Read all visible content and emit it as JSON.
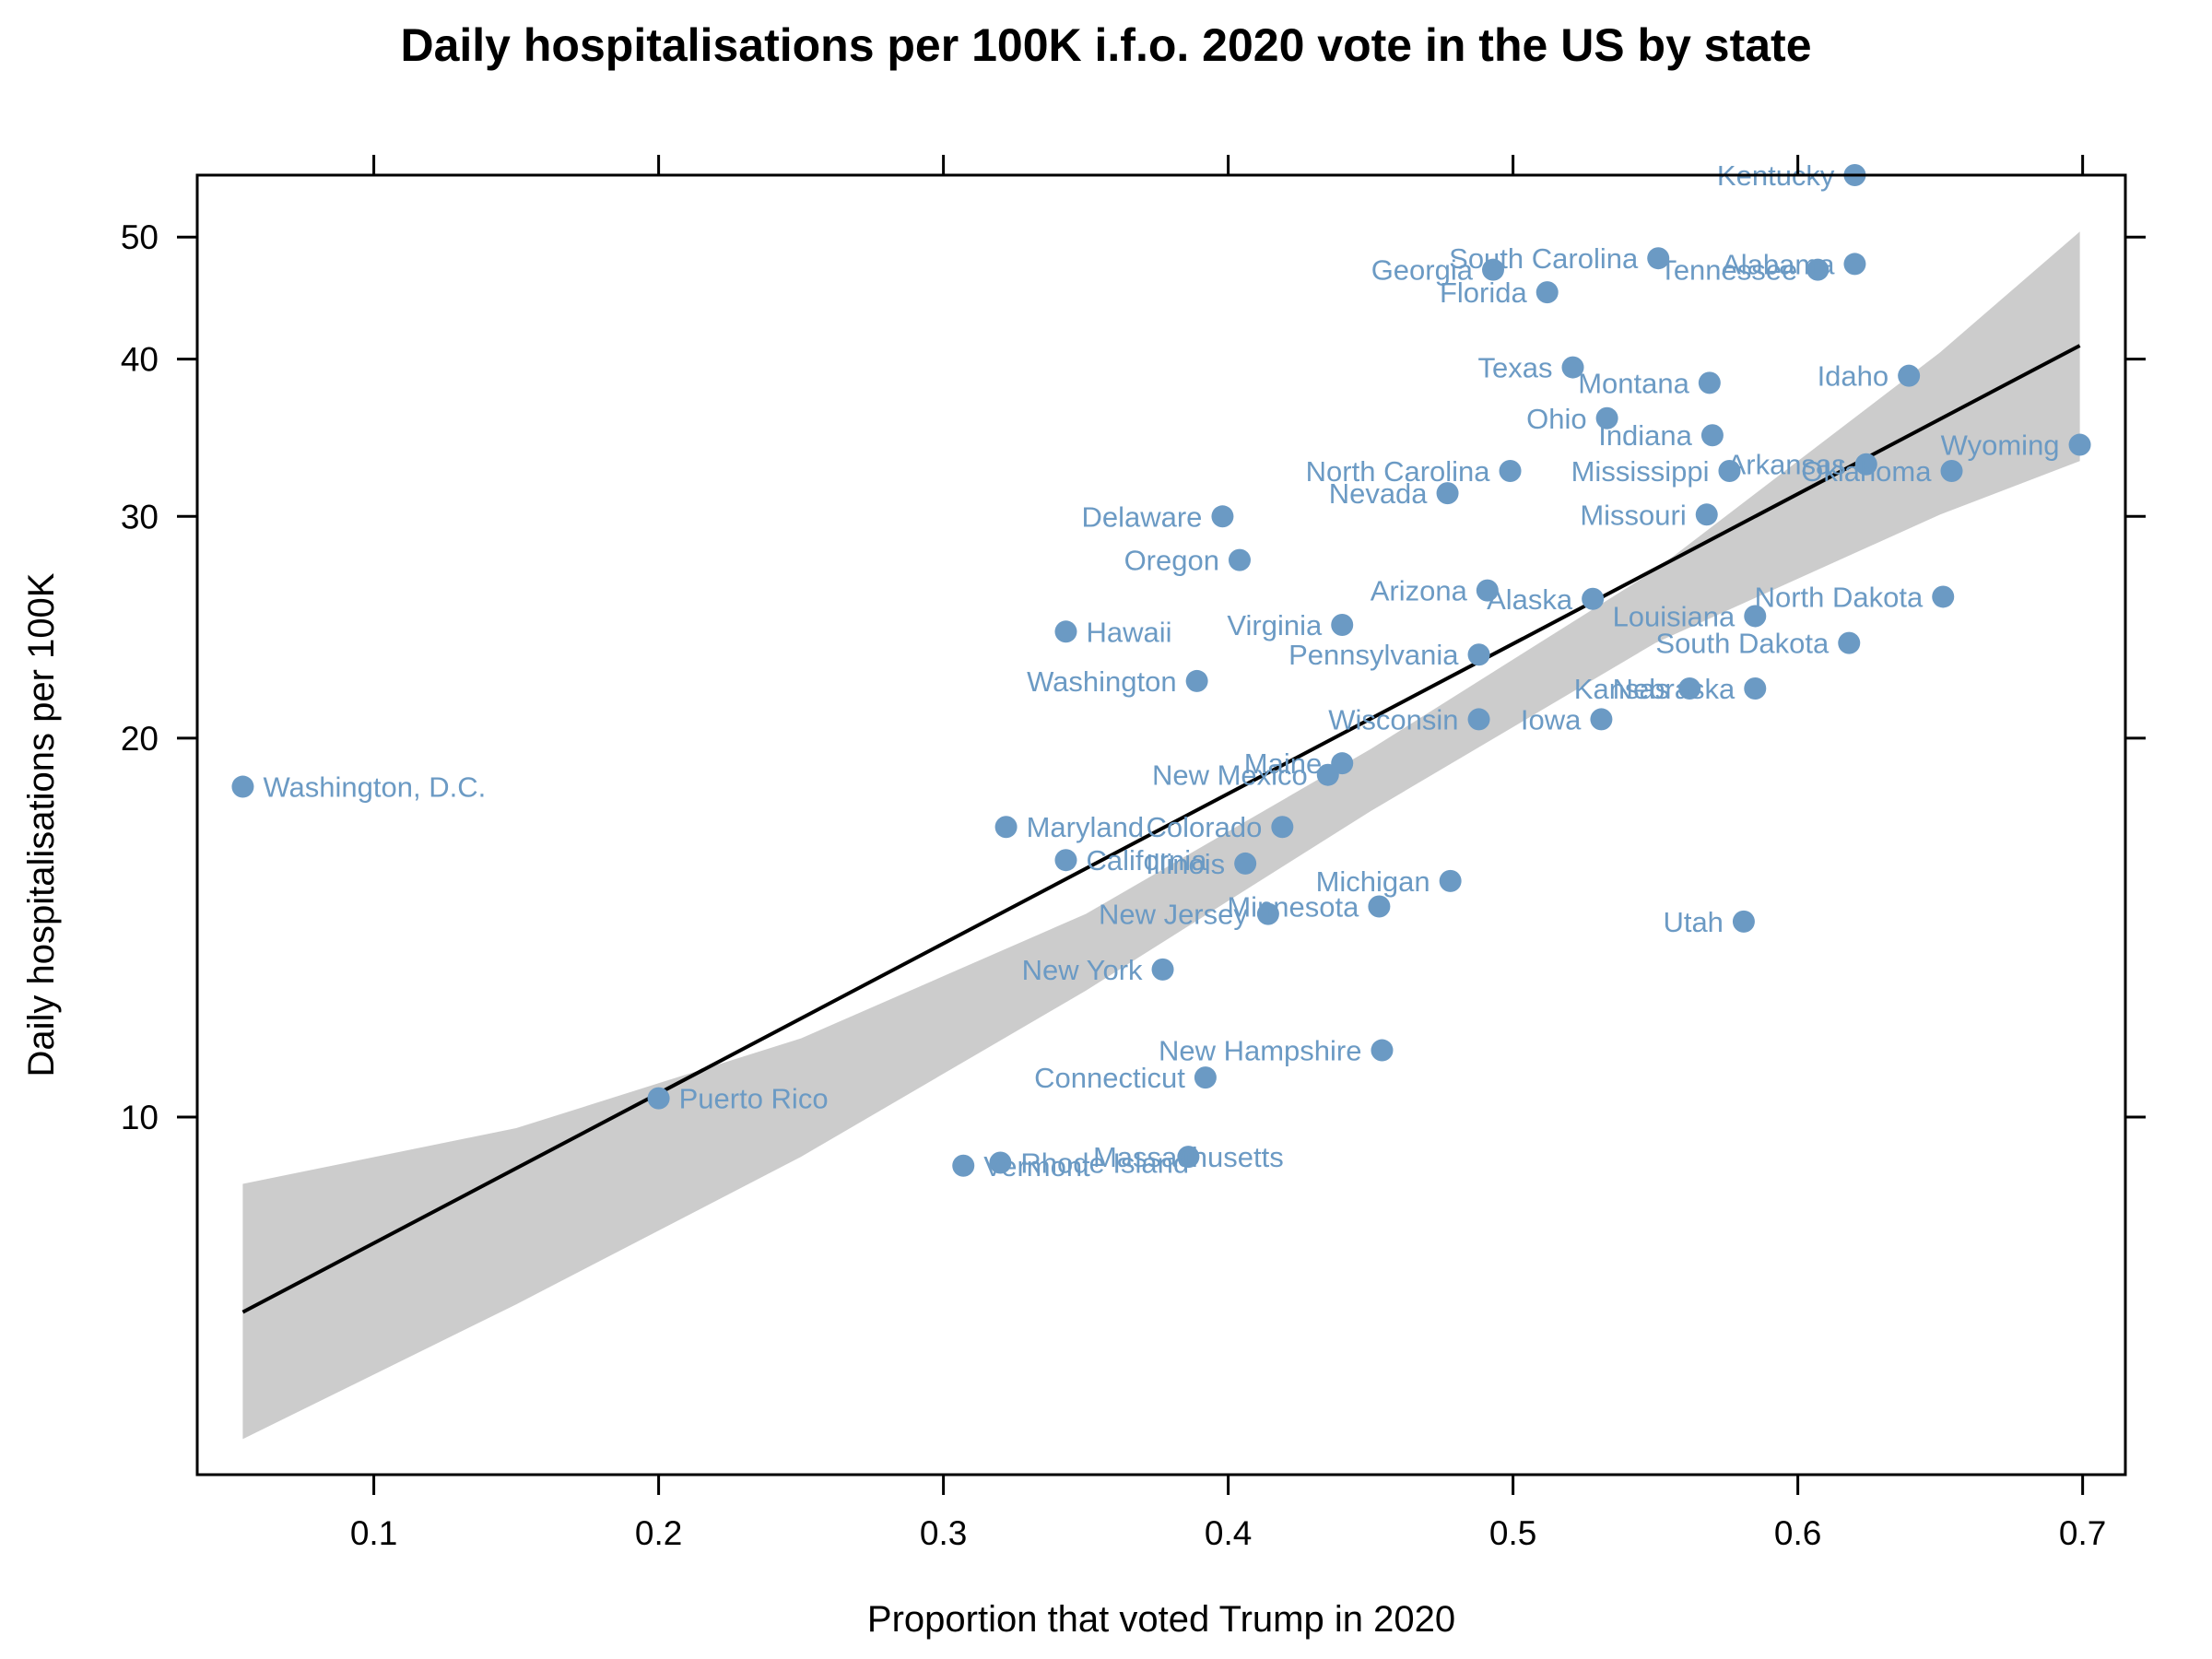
{
  "chart_data": {
    "type": "scatter",
    "title": "Daily hospitalisations per 100K i.f.o. 2020 vote in the US by state",
    "xlabel": "Proportion that voted Trump in 2020",
    "ylabel": "Daily hospitalisations per 100K",
    "xlim": [
      0.038,
      0.715
    ],
    "ylim": [
      5.2,
      56
    ],
    "y_scale": "log",
    "x_ticks": [
      0.1,
      0.2,
      0.3,
      0.4,
      0.5,
      0.6,
      0.7
    ],
    "x_tick_labels": [
      "0.1",
      "0.2",
      "0.3",
      "0.4",
      "0.5",
      "0.6",
      "0.7"
    ],
    "y_ticks": [
      10,
      20,
      30,
      40,
      50
    ],
    "y_tick_labels": [
      "10",
      "20",
      "30",
      "40",
      "50"
    ],
    "grid": false,
    "colors": {
      "points": "#6b9ac4",
      "labels": "#6b9ac4",
      "fit_line": "#000000",
      "confidence_band": "#cccccc"
    },
    "fit": {
      "x": [
        0.054,
        0.699
      ],
      "y": [
        7.0,
        41.0
      ],
      "band": {
        "x": [
          0.054,
          0.15,
          0.25,
          0.35,
          0.45,
          0.55,
          0.65,
          0.699
        ],
        "lower": [
          5.55,
          7.1,
          9.3,
          12.6,
          17.5,
          23.8,
          30.1,
          33.2
        ],
        "upper": [
          8.85,
          9.8,
          11.55,
          14.5,
          19.6,
          27.2,
          40.5,
          50.5
        ]
      }
    },
    "points": [
      {
        "label": "Washington, D.C.",
        "x": 0.054,
        "y": 18.3,
        "anchor": "right"
      },
      {
        "label": "Puerto Rico",
        "x": 0.2,
        "y": 10.35,
        "anchor": "right"
      },
      {
        "label": "Vermont",
        "x": 0.307,
        "y": 9.15,
        "anchor": "right"
      },
      {
        "label": "Rhode Island",
        "x": 0.32,
        "y": 9.2,
        "anchor": "right"
      },
      {
        "label": "Massachusetts",
        "x": 0.386,
        "y": 9.3,
        "anchor": "center"
      },
      {
        "label": "Maryland",
        "x": 0.322,
        "y": 17.0,
        "anchor": "right"
      },
      {
        "label": "California",
        "x": 0.343,
        "y": 16.0,
        "anchor": "right"
      },
      {
        "label": "Hawaii",
        "x": 0.343,
        "y": 24.3,
        "anchor": "right"
      },
      {
        "label": "New York",
        "x": 0.377,
        "y": 13.1,
        "anchor": "left"
      },
      {
        "label": "Connecticut",
        "x": 0.392,
        "y": 10.75,
        "anchor": "left"
      },
      {
        "label": "Washington",
        "x": 0.389,
        "y": 22.2,
        "anchor": "left"
      },
      {
        "label": "Delaware",
        "x": 0.398,
        "y": 30.0,
        "anchor": "left"
      },
      {
        "label": "Oregon",
        "x": 0.404,
        "y": 27.7,
        "anchor": "left"
      },
      {
        "label": "Illinois",
        "x": 0.406,
        "y": 15.9,
        "anchor": "left"
      },
      {
        "label": "New Jersey",
        "x": 0.414,
        "y": 14.5,
        "anchor": "left"
      },
      {
        "label": "Colorado",
        "x": 0.419,
        "y": 17.0,
        "anchor": "left"
      },
      {
        "label": "New Mexico",
        "x": 0.435,
        "y": 18.7,
        "anchor": "left"
      },
      {
        "label": "Maine",
        "x": 0.44,
        "y": 19.1,
        "anchor": "left"
      },
      {
        "label": "Virginia",
        "x": 0.44,
        "y": 24.6,
        "anchor": "left"
      },
      {
        "label": "Minnesota",
        "x": 0.453,
        "y": 14.7,
        "anchor": "left"
      },
      {
        "label": "New Hampshire",
        "x": 0.454,
        "y": 11.3,
        "anchor": "left"
      },
      {
        "label": "Nevada",
        "x": 0.477,
        "y": 31.3,
        "anchor": "left"
      },
      {
        "label": "Michigan",
        "x": 0.478,
        "y": 15.4,
        "anchor": "left"
      },
      {
        "label": "Pennsylvania",
        "x": 0.488,
        "y": 23.3,
        "anchor": "left"
      },
      {
        "label": "Wisconsin",
        "x": 0.488,
        "y": 20.7,
        "anchor": "left"
      },
      {
        "label": "Arizona",
        "x": 0.491,
        "y": 26.2,
        "anchor": "left"
      },
      {
        "label": "Georgia",
        "x": 0.493,
        "y": 47.1,
        "anchor": "left"
      },
      {
        "label": "North Carolina",
        "x": 0.499,
        "y": 32.6,
        "anchor": "left"
      },
      {
        "label": "Florida",
        "x": 0.512,
        "y": 45.2,
        "anchor": "left"
      },
      {
        "label": "Texas",
        "x": 0.521,
        "y": 39.4,
        "anchor": "left"
      },
      {
        "label": "Alaska",
        "x": 0.528,
        "y": 25.8,
        "anchor": "left"
      },
      {
        "label": "Iowa",
        "x": 0.531,
        "y": 20.7,
        "anchor": "left"
      },
      {
        "label": "Ohio",
        "x": 0.533,
        "y": 35.9,
        "anchor": "left"
      },
      {
        "label": "South Carolina",
        "x": 0.551,
        "y": 48.1,
        "anchor": "left"
      },
      {
        "label": "Kansas",
        "x": 0.562,
        "y": 21.9,
        "anchor": "left"
      },
      {
        "label": "Missouri",
        "x": 0.568,
        "y": 30.1,
        "anchor": "left"
      },
      {
        "label": "Montana",
        "x": 0.569,
        "y": 38.3,
        "anchor": "left"
      },
      {
        "label": "Indiana",
        "x": 0.57,
        "y": 34.8,
        "anchor": "left"
      },
      {
        "label": "Mississippi",
        "x": 0.576,
        "y": 32.6,
        "anchor": "left"
      },
      {
        "label": "Utah",
        "x": 0.581,
        "y": 14.3,
        "anchor": "left"
      },
      {
        "label": "Louisiana",
        "x": 0.585,
        "y": 25.0,
        "anchor": "left"
      },
      {
        "label": "Nebraska",
        "x": 0.585,
        "y": 21.9,
        "anchor": "left"
      },
      {
        "label": "Tennessee",
        "x": 0.607,
        "y": 47.1,
        "anchor": "left"
      },
      {
        "label": "South Dakota",
        "x": 0.618,
        "y": 23.8,
        "anchor": "left"
      },
      {
        "label": "Alabama",
        "x": 0.62,
        "y": 47.6,
        "anchor": "left"
      },
      {
        "label": "Kentucky",
        "x": 0.62,
        "y": 56.0,
        "anchor": "left"
      },
      {
        "label": "Arkansas",
        "x": 0.624,
        "y": 33.0,
        "anchor": "left"
      },
      {
        "label": "Idaho",
        "x": 0.639,
        "y": 38.8,
        "anchor": "left"
      },
      {
        "label": "North Dakota",
        "x": 0.651,
        "y": 25.9,
        "anchor": "left"
      },
      {
        "label": "Oklahoma",
        "x": 0.654,
        "y": 32.6,
        "anchor": "left"
      },
      {
        "label": "Wyoming",
        "x": 0.699,
        "y": 34.2,
        "anchor": "left"
      }
    ]
  }
}
